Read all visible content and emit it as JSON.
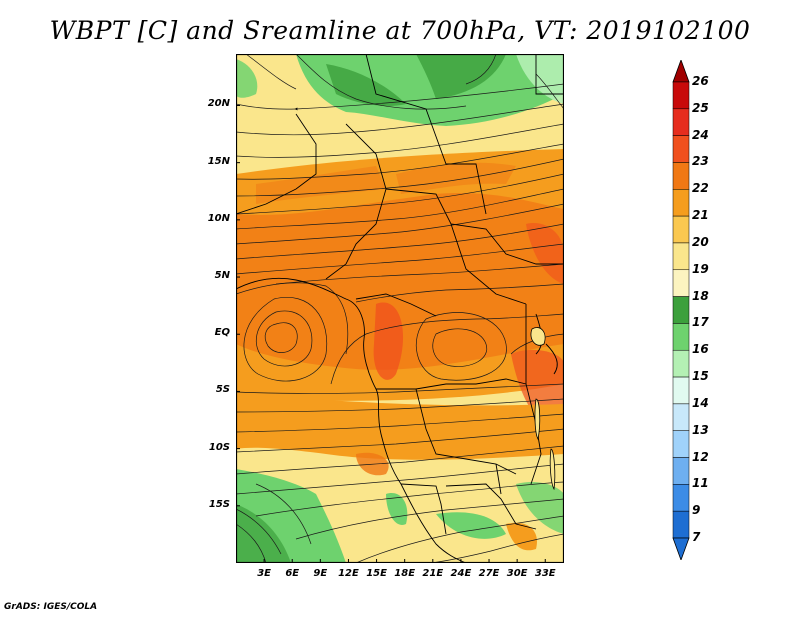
{
  "title": "WBPT [C] and Sreamline at 700hPa, VT: 2019102100",
  "credit": "GrADS: IGES/COLA",
  "map": {
    "variable": "Wet-bulb potential temperature",
    "units": "C",
    "level": "700hPa",
    "valid_time": "2019102100",
    "lon_range": [
      0,
      35
    ],
    "lat_range": [
      -20,
      24.5
    ],
    "lat_ticks": [
      "20N",
      "15N",
      "10N",
      "5N",
      "EQ",
      "5S",
      "10S",
      "15S"
    ],
    "lat_tick_values": [
      20,
      15,
      10,
      5,
      0,
      -5,
      -10,
      -15
    ],
    "lon_ticks": [
      "3E",
      "6E",
      "9E",
      "12E",
      "15E",
      "18E",
      "21E",
      "24E",
      "27E",
      "30E",
      "33E"
    ],
    "lon_tick_values": [
      3,
      6,
      9,
      12,
      15,
      18,
      21,
      24,
      27,
      30,
      33
    ]
  },
  "colorbar": {
    "labels": [
      "26",
      "25",
      "24",
      "23",
      "22",
      "21",
      "20",
      "19",
      "18",
      "17",
      "16",
      "15",
      "14",
      "13",
      "12",
      "11",
      "9",
      "7"
    ],
    "colors": [
      "#a00000",
      "#c80a0a",
      "#e62d1e",
      "#f0501e",
      "#f07814",
      "#f59d1e",
      "#fac850",
      "#fae68c",
      "#fcf4c0",
      "#3ca03c",
      "#6ed26e",
      "#b4f0b4",
      "#e1faf0",
      "#c8e8fa",
      "#a0d2fa",
      "#6eaff0",
      "#3c8ce6",
      "#1e6ed2"
    ],
    "top_arrow_color": "#a00000",
    "bottom_arrow_color": "#1e6ed2"
  }
}
